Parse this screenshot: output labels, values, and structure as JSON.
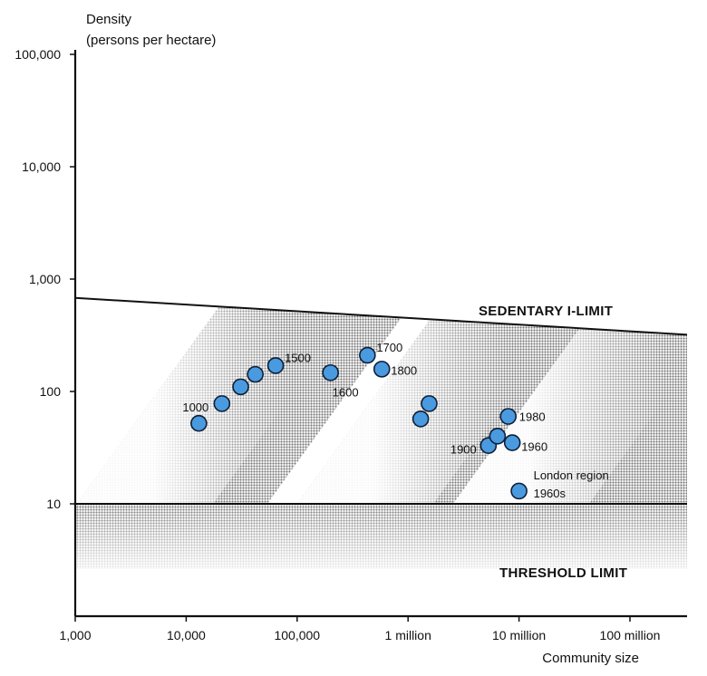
{
  "chart_data": {
    "type": "scatter",
    "x_scale": "log",
    "y_scale": "log",
    "xlim": [
      1000,
      500000000
    ],
    "ylim": [
      1,
      100000
    ],
    "ylabel": "Density",
    "ylabel2": "(persons per hectare)",
    "xlabel": "Community size",
    "x_ticks": [
      {
        "value": 1000,
        "label": "1,000"
      },
      {
        "value": 10000,
        "label": "10,000"
      },
      {
        "value": 100000,
        "label": "100,000"
      },
      {
        "value": 1000000,
        "label": "1 million"
      },
      {
        "value": 10000000,
        "label": "10 million"
      },
      {
        "value": 100000000,
        "label": "100 million"
      }
    ],
    "y_ticks": [
      {
        "value": 10,
        "label": "10"
      },
      {
        "value": 100,
        "label": "100"
      },
      {
        "value": 1000,
        "label": "1,000"
      },
      {
        "value": 10000,
        "label": "10,000"
      },
      {
        "value": 100000,
        "label": "100,000"
      }
    ],
    "limits": [
      {
        "name": "SEDENTARY I-LIMIT",
        "x": [
          1000,
          500000000
        ],
        "y": [
          680,
          320
        ]
      },
      {
        "name": "THRESHOLD LIMIT",
        "y": 10
      }
    ],
    "points": [
      {
        "x": 13000,
        "y": 52,
        "label": "1000"
      },
      {
        "x": 21000,
        "y": 78,
        "label": ""
      },
      {
        "x": 31000,
        "y": 110,
        "label": ""
      },
      {
        "x": 42000,
        "y": 142,
        "label": ""
      },
      {
        "x": 64000,
        "y": 170,
        "label": "1500"
      },
      {
        "x": 200000,
        "y": 147,
        "label": "1600"
      },
      {
        "x": 430000,
        "y": 210,
        "label": "1700"
      },
      {
        "x": 580000,
        "y": 158,
        "label": "1800"
      },
      {
        "x": 1300000,
        "y": 57,
        "label": ""
      },
      {
        "x": 1550000,
        "y": 78,
        "label": ""
      },
      {
        "x": 5300000,
        "y": 33,
        "label": "1900"
      },
      {
        "x": 6400000,
        "y": 40,
        "label": ""
      },
      {
        "x": 8000000,
        "y": 60,
        "label": "1980"
      },
      {
        "x": 8700000,
        "y": 35,
        "label": "1960"
      },
      {
        "x": 10000000,
        "y": 13,
        "label": "London region",
        "label2": "1960s"
      }
    ],
    "colors": {
      "point_fill": "#4a9ae0",
      "point_stroke": "#0f1f35",
      "band": "#9a9a9a"
    }
  }
}
